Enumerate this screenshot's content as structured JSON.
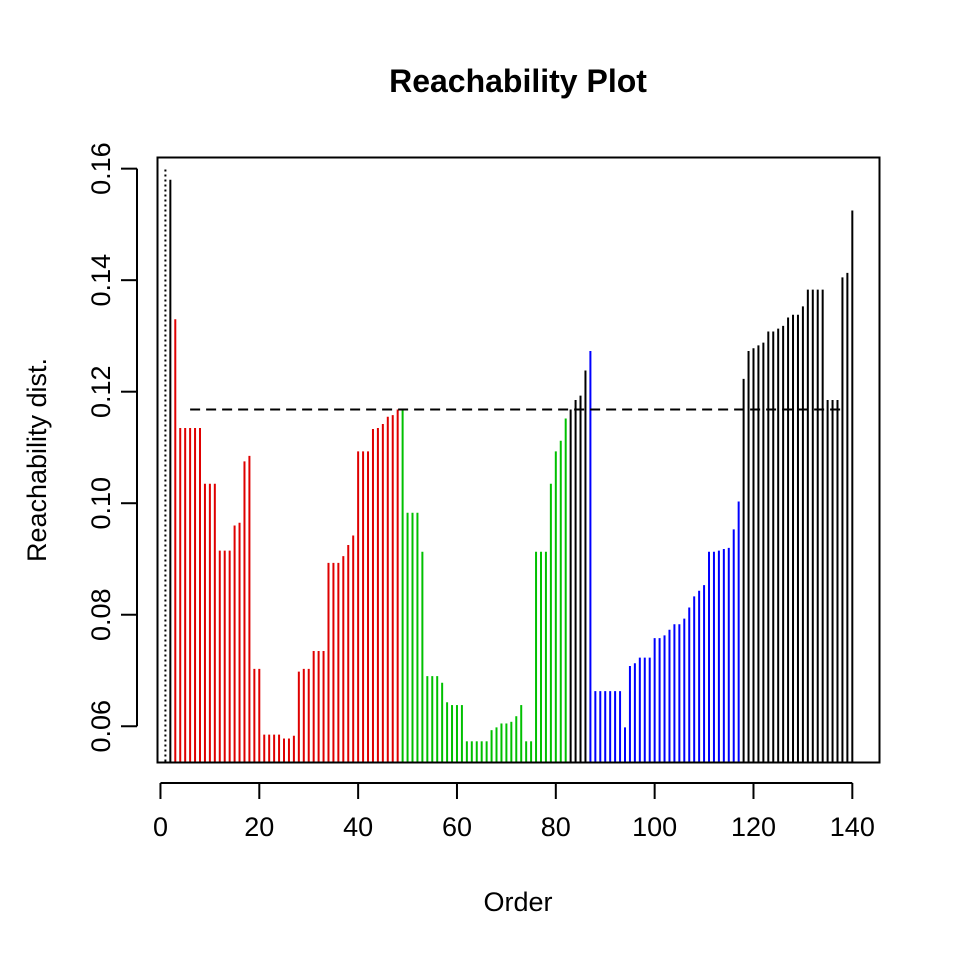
{
  "chart_data": {
    "type": "bar",
    "title": "Reachability Plot",
    "xlabel": "Order",
    "ylabel": "Reachability dist.",
    "xlim": [
      -0.6,
      145.5
    ],
    "ylim": [
      0.0535,
      0.162
    ],
    "xticks": [
      0,
      20,
      40,
      60,
      80,
      100,
      120,
      140
    ],
    "yticks": [
      0.06,
      0.08,
      0.1,
      0.12,
      0.14,
      0.16
    ],
    "ytick_labels": [
      "0.06",
      "0.08",
      "0.10",
      "0.12",
      "0.14",
      "0.16"
    ],
    "threshold": 0.1168,
    "threshold_xrange": [
      6,
      138
    ],
    "first_point_x": 1,
    "colors": {
      "red": "#df0000",
      "green": "#00c000",
      "blue": "#0000ff",
      "black": "#000000"
    },
    "series": [
      {
        "name": "",
        "color": "black",
        "x": [
          2
        ],
        "values": [
          0.158
        ]
      },
      {
        "name": "",
        "color": "red",
        "x": [
          3,
          4,
          5,
          6,
          7,
          8,
          9,
          10,
          11,
          12,
          13,
          14,
          15,
          16,
          17,
          18,
          19,
          20,
          21,
          22,
          23,
          24,
          25,
          26,
          27,
          28,
          29,
          30,
          31,
          32,
          33,
          34,
          35,
          36,
          37,
          38,
          39,
          40,
          41,
          42,
          43,
          44,
          45,
          46,
          47,
          48
        ],
        "values": [
          0.133,
          0.1135,
          0.1135,
          0.1135,
          0.1135,
          0.1135,
          0.1035,
          0.1035,
          0.1035,
          0.0915,
          0.0915,
          0.0915,
          0.096,
          0.0965,
          0.1075,
          0.1085,
          0.0703,
          0.0703,
          0.0585,
          0.0585,
          0.0585,
          0.0585,
          0.0578,
          0.0578,
          0.0583,
          0.0698,
          0.0703,
          0.0703,
          0.0735,
          0.0735,
          0.0735,
          0.0893,
          0.0893,
          0.0893,
          0.0905,
          0.0925,
          0.0942,
          0.1093,
          0.1093,
          0.1093,
          0.1133,
          0.1135,
          0.1142,
          0.1155,
          0.1158,
          0.1168
        ]
      },
      {
        "name": "",
        "color": "green",
        "x": [
          49,
          50,
          51,
          52,
          53,
          54,
          55,
          56,
          57,
          58,
          59,
          60,
          61,
          62,
          63,
          64,
          65,
          66,
          67,
          68,
          69,
          70,
          71,
          72,
          73,
          74,
          75,
          76,
          77,
          78,
          79,
          80,
          81,
          82
        ],
        "values": [
          0.1168,
          0.0983,
          0.0983,
          0.0983,
          0.0913,
          0.069,
          0.069,
          0.069,
          0.0678,
          0.0643,
          0.0638,
          0.0638,
          0.0638,
          0.0573,
          0.0573,
          0.0573,
          0.0573,
          0.0573,
          0.0593,
          0.0598,
          0.0605,
          0.0605,
          0.0608,
          0.0618,
          0.0638,
          0.0573,
          0.0573,
          0.0913,
          0.0913,
          0.0913,
          0.1035,
          0.1093,
          0.1112,
          0.1152
        ]
      },
      {
        "name": "",
        "color": "black",
        "x": [
          83,
          84,
          85,
          86
        ],
        "values": [
          0.1168,
          0.1185,
          0.1193,
          0.1238
        ]
      },
      {
        "name": "",
        "color": "blue",
        "x": [
          87,
          88,
          89,
          90,
          91,
          92,
          93,
          94,
          95,
          96,
          97,
          98,
          99,
          100,
          101,
          102,
          103,
          104,
          105,
          106,
          107,
          108,
          109,
          110,
          111,
          112,
          113,
          114,
          115,
          116,
          117
        ],
        "values": [
          0.1273,
          0.0663,
          0.0663,
          0.0663,
          0.0663,
          0.0663,
          0.0663,
          0.0598,
          0.0708,
          0.0713,
          0.0723,
          0.0723,
          0.0723,
          0.0758,
          0.0758,
          0.0763,
          0.0773,
          0.0783,
          0.0783,
          0.0793,
          0.0813,
          0.0833,
          0.0843,
          0.0853,
          0.0913,
          0.0913,
          0.0915,
          0.0918,
          0.092,
          0.0953,
          0.1003
        ]
      },
      {
        "name": "",
        "color": "black",
        "x": [
          118,
          119,
          120,
          121,
          122,
          123,
          124,
          125,
          126,
          127,
          128,
          129,
          130,
          131,
          132,
          133,
          134,
          135,
          136,
          137,
          138,
          139,
          140
        ],
        "values": [
          0.1223,
          0.1273,
          0.1278,
          0.1283,
          0.1288,
          0.1308,
          0.1308,
          0.1313,
          0.1318,
          0.1333,
          0.1338,
          0.1338,
          0.1353,
          0.1383,
          0.1383,
          0.1383,
          0.1383,
          0.1185,
          0.1185,
          0.1185,
          0.1405,
          0.1413,
          0.1525
        ]
      }
    ]
  }
}
